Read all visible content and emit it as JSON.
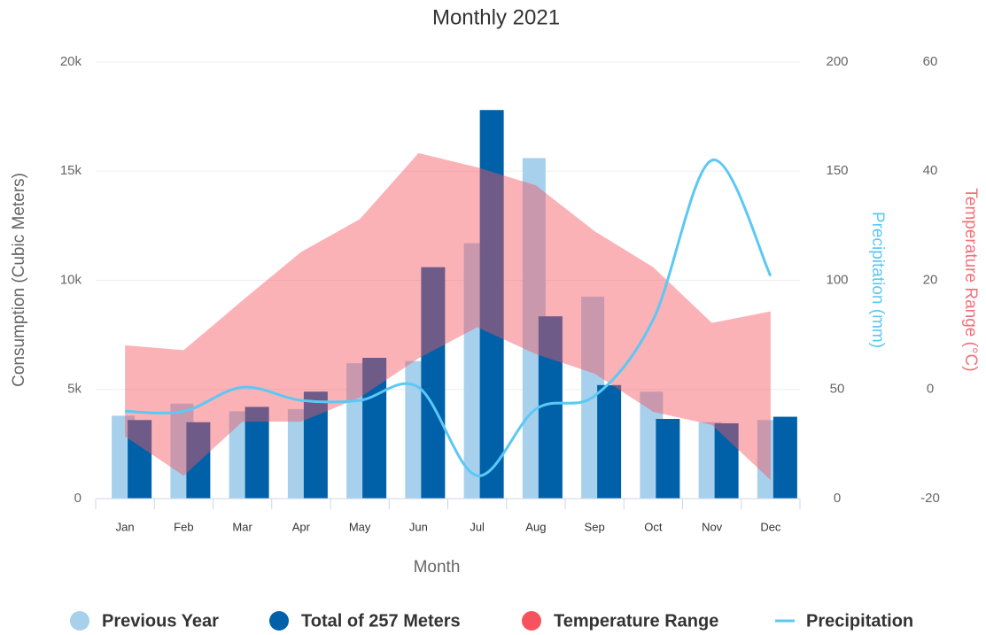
{
  "chart_data": {
    "type": "combo",
    "title": "Monthly 2021",
    "categories": [
      "Jan",
      "Feb",
      "Mar",
      "Apr",
      "May",
      "Jun",
      "Jul",
      "Aug",
      "Sep",
      "Oct",
      "Nov",
      "Dec"
    ],
    "x_label": "Month",
    "y_label": "Consumption (Cubic Meters)",
    "y2_label": "Precipitation (mm)",
    "y3_label": "Temperature Range (°C)",
    "ylim": [
      0,
      20000
    ],
    "yticks": [
      0,
      {
        "value": 5000,
        "label": "5k"
      },
      {
        "value": 10000,
        "label": "10k"
      },
      {
        "value": 15000,
        "label": "15k"
      },
      {
        "value": 20000,
        "label": "20k"
      }
    ],
    "y2lim": [
      0,
      200
    ],
    "y2ticks": [
      0,
      50,
      100,
      150,
      200
    ],
    "y3lim": [
      -20,
      60
    ],
    "y3ticks": [
      -20,
      0,
      20,
      40,
      60
    ],
    "grid": true,
    "series": [
      {
        "name": "Previous Year",
        "type": "bar",
        "color": "#a6d0ec",
        "values": [
          3800,
          4350,
          4000,
          4100,
          6200,
          6300,
          11700,
          15600,
          9250,
          4900,
          3500,
          3600
        ]
      },
      {
        "name": "Total of 257 Meters",
        "type": "bar",
        "color": "#0061a8",
        "values": [
          3600,
          3500,
          4200,
          4900,
          6450,
          10600,
          17800,
          8350,
          5200,
          3650,
          3450,
          3750
        ]
      },
      {
        "name": "Temperature Range",
        "type": "arearange",
        "color": "#f5545f",
        "axis": "y3",
        "low": [
          -8.6,
          -15.8,
          -5.9,
          -5.9,
          -1.5,
          5.7,
          11.4,
          6.5,
          2.9,
          -4.1,
          -6.5,
          -16.6
        ],
        "high": [
          8.1,
          7.2,
          16.3,
          25.2,
          31.2,
          43.3,
          40.7,
          37.4,
          29,
          22.4,
          12.2,
          14.3
        ]
      },
      {
        "name": "Precipitation",
        "type": "spline",
        "color": "#5bc8f5",
        "axis": "y2",
        "values": [
          40,
          40,
          51,
          45,
          45,
          51,
          10.5,
          41,
          47,
          82,
          155,
          102
        ]
      }
    ]
  }
}
